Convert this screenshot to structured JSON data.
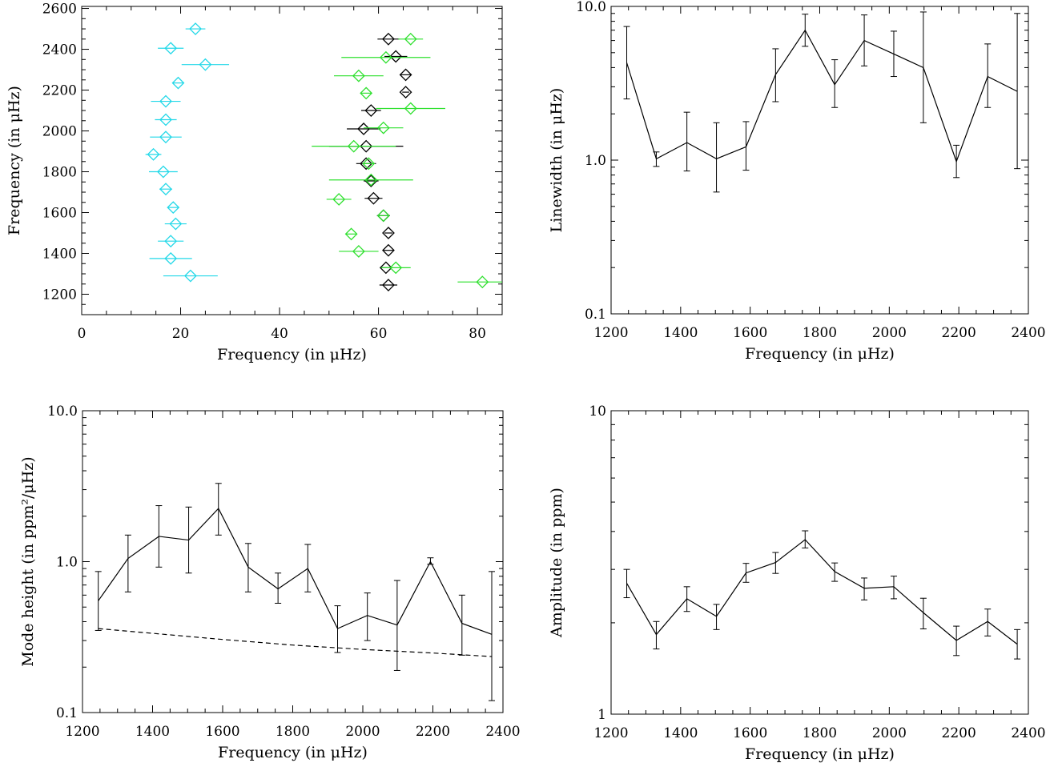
{
  "chart_data": [
    {
      "id": "panel-echelle",
      "type": "scatter",
      "xlabel": "Frequency (in μHz)",
      "ylabel": "Frequency (in μHz)",
      "xlim": [
        0,
        85
      ],
      "ylim": [
        1100,
        2610
      ],
      "xscale": "linear",
      "yscale": "linear",
      "xticks": [
        0,
        20,
        40,
        60,
        80
      ],
      "yticks": [
        1200,
        1400,
        1600,
        1800,
        2000,
        2200,
        2400,
        2600
      ],
      "marker": "diamond",
      "series": [
        {
          "color": "#22d8e8",
          "points": [
            {
              "x": 22.0,
              "y": 1290,
              "err": 5.5
            },
            {
              "x": 18.0,
              "y": 1375,
              "err": 4.3
            },
            {
              "x": 18.0,
              "y": 1460,
              "err": 2.6
            },
            {
              "x": 19.0,
              "y": 1545,
              "err": 2.2
            },
            {
              "x": 18.5,
              "y": 1625,
              "err": 1.0
            },
            {
              "x": 17.0,
              "y": 1715,
              "err": 1.3
            },
            {
              "x": 16.5,
              "y": 1800,
              "err": 2.9
            },
            {
              "x": 14.5,
              "y": 1885,
              "err": 1.6
            },
            {
              "x": 17.0,
              "y": 1970,
              "err": 3.2
            },
            {
              "x": 17.0,
              "y": 2055,
              "err": 2.2
            },
            {
              "x": 17.0,
              "y": 2145,
              "err": 3.0
            },
            {
              "x": 19.5,
              "y": 2235,
              "err": 1.0
            },
            {
              "x": 25.0,
              "y": 2325,
              "err": 4.8
            },
            {
              "x": 18.0,
              "y": 2405,
              "err": 2.6
            },
            {
              "x": 23.0,
              "y": 2500,
              "err": 2.0
            }
          ]
        },
        {
          "color": "#000000",
          "points": [
            {
              "x": 62.0,
              "y": 1245,
              "err": 1.8
            },
            {
              "x": 61.5,
              "y": 1330,
              "err": 1.2
            },
            {
              "x": 62.0,
              "y": 1415,
              "err": 1.0
            },
            {
              "x": 62.0,
              "y": 1500,
              "err": 0.8
            },
            {
              "x": 61.0,
              "y": 1585,
              "err": 1.3
            },
            {
              "x": 59.0,
              "y": 1670,
              "err": 1.8
            },
            {
              "x": 58.5,
              "y": 1755,
              "err": 1.5
            },
            {
              "x": 57.5,
              "y": 1840,
              "err": 2.0
            },
            {
              "x": 57.5,
              "y": 1925,
              "err": 7.5
            },
            {
              "x": 57.0,
              "y": 2010,
              "err": 3.4
            },
            {
              "x": 58.5,
              "y": 2100,
              "err": 2.0
            },
            {
              "x": 65.5,
              "y": 2190,
              "err": 0.7
            },
            {
              "x": 65.5,
              "y": 2275,
              "err": 1.0
            },
            {
              "x": 63.5,
              "y": 2365,
              "err": 2.3
            },
            {
              "x": 62.0,
              "y": 2450,
              "err": 2.2
            }
          ]
        },
        {
          "color": "#2ee02e",
          "points": [
            {
              "x": 81.0,
              "y": 1260,
              "err": 5.0
            },
            {
              "x": 63.5,
              "y": 1330,
              "err": 3.0
            },
            {
              "x": 56.0,
              "y": 1410,
              "err": 4.0
            },
            {
              "x": 54.5,
              "y": 1495,
              "err": 1.0
            },
            {
              "x": 61.0,
              "y": 1585,
              "err": 1.0
            },
            {
              "x": 52.0,
              "y": 1665,
              "err": 2.5
            },
            {
              "x": 58.5,
              "y": 1760,
              "err": 8.5
            },
            {
              "x": 58.0,
              "y": 1840,
              "err": 1.0
            },
            {
              "x": 55.0,
              "y": 1925,
              "err": 8.5
            },
            {
              "x": 61.0,
              "y": 2015,
              "err": 4.0
            },
            {
              "x": 66.5,
              "y": 2110,
              "err": 7.0
            },
            {
              "x": 57.5,
              "y": 2185,
              "err": 1.0
            },
            {
              "x": 56.0,
              "y": 2270,
              "err": 5.0
            },
            {
              "x": 61.5,
              "y": 2360,
              "err": 9.0
            },
            {
              "x": 66.5,
              "y": 2450,
              "err": 2.5
            }
          ]
        }
      ]
    },
    {
      "id": "panel-linewidth",
      "type": "line",
      "xlabel": "Frequency (in μHz)",
      "ylabel": "Linewidth (in μHz)",
      "xlim": [
        1200,
        2400
      ],
      "ylim": [
        0.1,
        10
      ],
      "xscale": "linear",
      "yscale": "log",
      "xticks": [
        1200,
        1400,
        1600,
        1800,
        2000,
        2200,
        2400
      ],
      "yticks": [
        0.1,
        1.0,
        10.0
      ],
      "ytick_labels": [
        "0.1",
        "1.0",
        "10.0"
      ],
      "series": [
        {
          "x": [
            1245,
            1330,
            1418,
            1503,
            1588,
            1673,
            1758,
            1843,
            1928,
            2013,
            2098,
            2193,
            2283,
            2368
          ],
          "y": [
            4.3,
            1.02,
            1.3,
            1.02,
            1.22,
            3.6,
            7.0,
            3.1,
            6.0,
            4.9,
            4.0,
            0.98,
            3.5,
            2.8
          ],
          "lo": [
            2.5,
            0.91,
            0.85,
            0.62,
            0.86,
            2.4,
            5.5,
            2.2,
            4.1,
            3.5,
            1.75,
            0.77,
            2.2,
            0.88
          ],
          "hi": [
            7.4,
            1.13,
            2.05,
            1.75,
            1.78,
            5.3,
            8.9,
            4.5,
            8.8,
            6.9,
            9.2,
            1.25,
            5.7,
            9.0
          ]
        }
      ]
    },
    {
      "id": "panel-height",
      "type": "line",
      "xlabel": "Frequency (in μHz)",
      "ylabel": "Mode height (in ppm²/μHz)",
      "xlim": [
        1200,
        2400
      ],
      "ylim": [
        0.1,
        10
      ],
      "xscale": "linear",
      "yscale": "log",
      "xticks": [
        1200,
        1400,
        1600,
        1800,
        2000,
        2200,
        2400
      ],
      "yticks": [
        0.1,
        1.0,
        10.0
      ],
      "ytick_labels": [
        "0.1",
        "1.0",
        "10.0"
      ],
      "series": [
        {
          "x": [
            1245,
            1330,
            1418,
            1503,
            1588,
            1673,
            1758,
            1843,
            1928,
            2013,
            2098,
            2193,
            2283,
            2368
          ],
          "y": [
            0.55,
            1.05,
            1.47,
            1.39,
            2.25,
            0.92,
            0.66,
            0.9,
            0.36,
            0.44,
            0.38,
            1.0,
            0.39,
            0.33
          ],
          "lo": [
            0.35,
            0.63,
            0.92,
            0.84,
            1.5,
            0.63,
            0.53,
            0.63,
            0.25,
            0.3,
            0.19,
            0.96,
            0.24,
            0.12
          ],
          "hi": [
            0.86,
            1.5,
            2.35,
            2.3,
            3.3,
            1.32,
            0.84,
            1.3,
            0.51,
            0.62,
            0.75,
            1.06,
            0.6,
            0.86
          ]
        },
        {
          "style": "dashed",
          "x": [
            1245,
            1400,
            1600,
            1800,
            2000,
            2200,
            2368
          ],
          "y": [
            0.36,
            0.335,
            0.305,
            0.28,
            0.262,
            0.248,
            0.235
          ]
        }
      ]
    },
    {
      "id": "panel-amplitude",
      "type": "line",
      "xlabel": "Frequency (in μHz)",
      "ylabel": "Amplitude (in ppm)",
      "xlim": [
        1200,
        2400
      ],
      "ylim": [
        1,
        10
      ],
      "xscale": "linear",
      "yscale": "log",
      "xticks": [
        1200,
        1400,
        1600,
        1800,
        2000,
        2200,
        2400
      ],
      "yticks": [
        1,
        10
      ],
      "ytick_labels": [
        "1",
        "10"
      ],
      "series": [
        {
          "x": [
            1245,
            1330,
            1418,
            1503,
            1588,
            1673,
            1758,
            1843,
            1928,
            2013,
            2098,
            2193,
            2283,
            2368
          ],
          "y": [
            2.7,
            1.83,
            2.4,
            2.1,
            2.92,
            3.16,
            3.76,
            2.95,
            2.6,
            2.63,
            2.16,
            1.75,
            2.02,
            1.7
          ],
          "lo": [
            2.42,
            1.64,
            2.18,
            1.9,
            2.72,
            2.91,
            3.53,
            2.74,
            2.38,
            2.4,
            1.91,
            1.56,
            1.81,
            1.52
          ],
          "hi": [
            3.0,
            2.02,
            2.63,
            2.3,
            3.14,
            3.41,
            4.02,
            3.15,
            2.81,
            2.85,
            2.41,
            1.95,
            2.22,
            1.9
          ]
        }
      ]
    }
  ]
}
